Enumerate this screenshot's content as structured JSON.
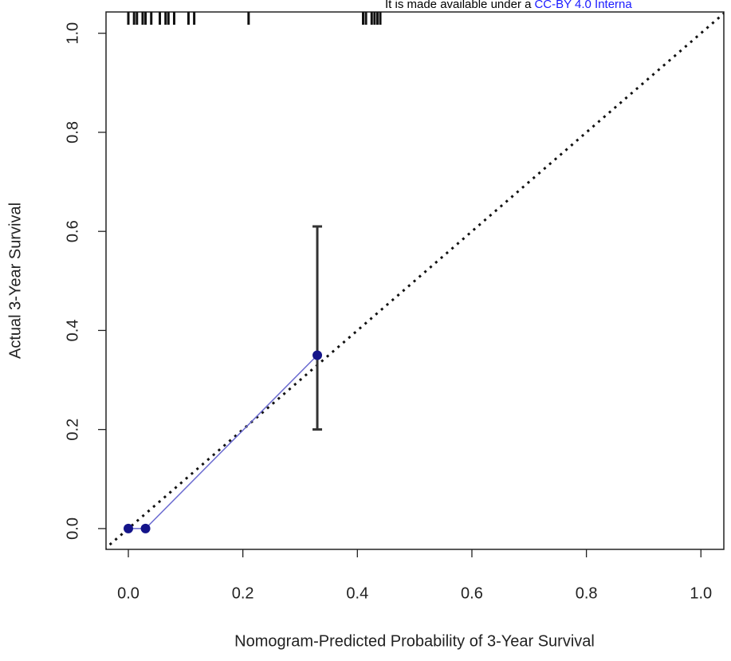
{
  "header": {
    "text": "It is made available under a",
    "link": "CC-BY 4.0 Interna"
  },
  "chart_data": {
    "type": "calibration",
    "xlabel": "Nomogram-Predicted Probability of 3-Year Survival",
    "ylabel": "Actual 3-Year Survival",
    "xlim": [
      -0.039,
      1.04
    ],
    "ylim": [
      -0.042,
      1.043
    ],
    "xticks": [
      {
        "value": 0,
        "label": "0.0"
      },
      0.2,
      0.4,
      0.6,
      0.8,
      {
        "value": 1,
        "label": "1.0"
      }
    ],
    "yticks": [
      {
        "value": 0,
        "label": "0.0"
      },
      0.2,
      0.4,
      0.6,
      0.8,
      {
        "value": 1,
        "label": "1.0"
      }
    ],
    "reference_line": true,
    "series": [
      {
        "x": [
          0,
          0.03,
          0.33
        ],
        "values": [
          0,
          0,
          0.35
        ],
        "ci_lower": [
          null,
          null,
          0.2
        ],
        "ci_upper": [
          null,
          null,
          0.61
        ],
        "color": "#14148a",
        "line_color": "#6a6ad0"
      }
    ],
    "rug": [
      0,
      0.01,
      0.015,
      0.025,
      0.03,
      0.04,
      0.055,
      0.065,
      0.07,
      0.08,
      0.105,
      0.115,
      0.21,
      0.41,
      0.415,
      0.425,
      0.43,
      0.435,
      0.44
    ]
  }
}
